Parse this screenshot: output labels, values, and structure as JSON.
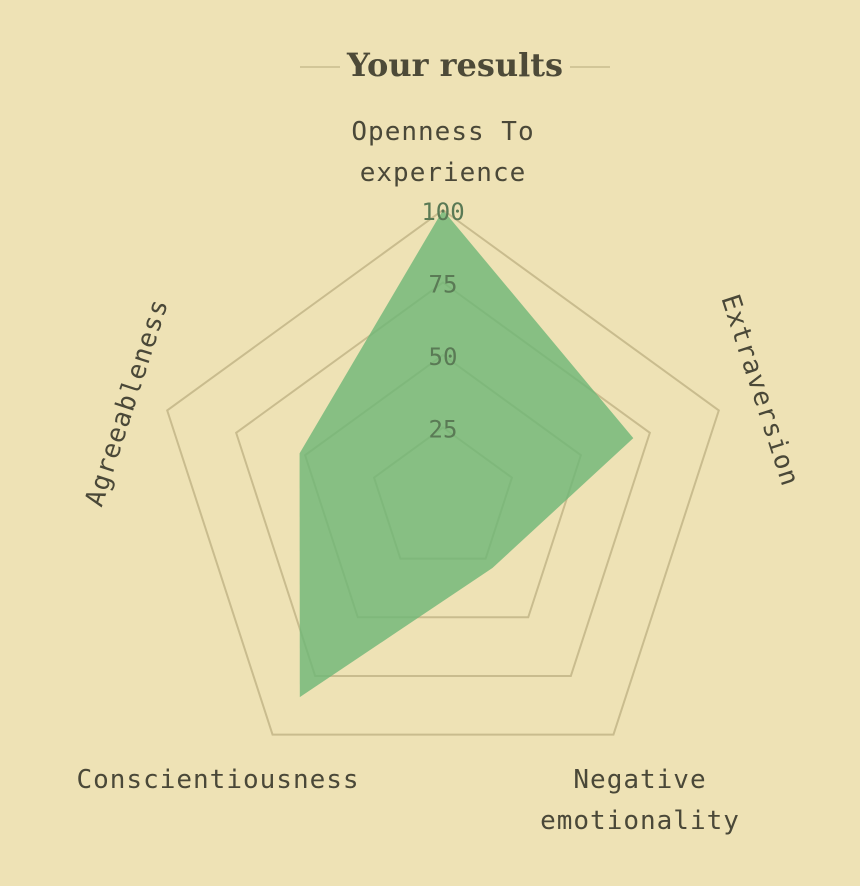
{
  "chart_data": {
    "type": "radar",
    "title": "Your results",
    "axes": [
      "Openness To experience",
      "Extraversion",
      "Negative emotionality",
      "Conscientiousness",
      "Agreeableness"
    ],
    "axis_label_lines": [
      [
        "Openness To",
        "experience"
      ],
      [
        "Extraversion"
      ],
      [
        "Negative",
        "emotionality"
      ],
      [
        "Conscientiousness"
      ],
      [
        "Agreeableness"
      ]
    ],
    "values": [
      100,
      69,
      29,
      84,
      52
    ],
    "range": [
      0,
      100
    ],
    "ticks": [
      25,
      50,
      75,
      100
    ],
    "grid": true,
    "colors": {
      "background": "#EEE2B5",
      "grid": "#C9BC8E",
      "fill": "#6DB677",
      "text": "#4A4838"
    }
  }
}
